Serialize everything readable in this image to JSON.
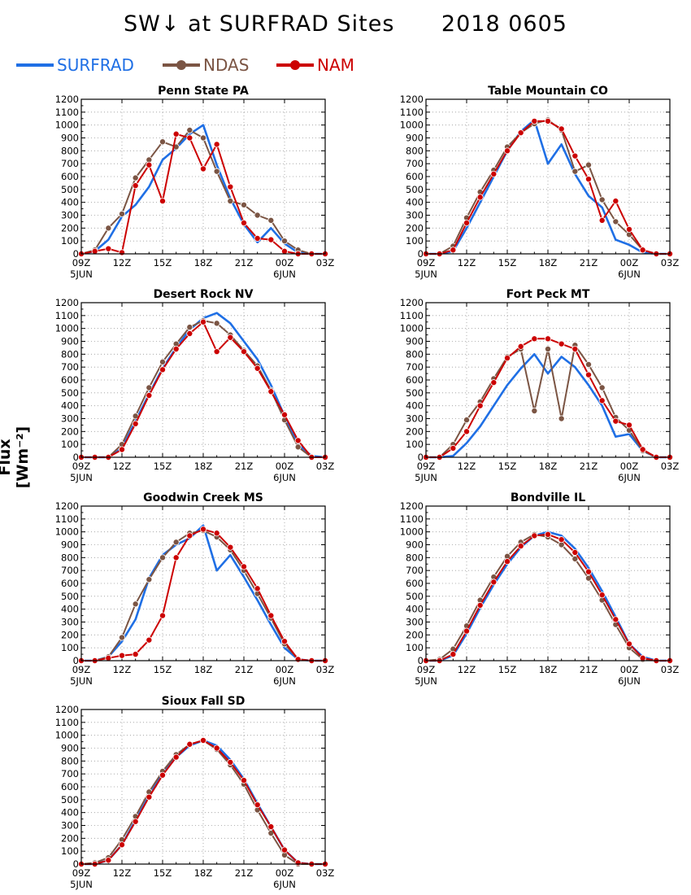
{
  "title": {
    "left": "SW↓ at SURFRAD Sites",
    "right": "2018 0605"
  },
  "legend": [
    {
      "name": "SURFRAD",
      "color": "#1f6fe5",
      "marker": "none"
    },
    {
      "name": "NDAS",
      "color": "#7b5544",
      "marker": "circle"
    },
    {
      "name": "NAM",
      "color": "#cc0000",
      "marker": "circle"
    }
  ],
  "ylabel": "Flux [Wm⁻²]",
  "axes": {
    "x_ticks": [
      "09Z",
      "12Z",
      "15Z",
      "18Z",
      "21Z",
      "00Z",
      "03Z"
    ],
    "x_sublabels": [
      "5JUN",
      "6JUN"
    ],
    "y_ticks": [
      "0",
      "100",
      "200",
      "300",
      "400",
      "500",
      "600",
      "700",
      "800",
      "900",
      "1000",
      "1100",
      "1200"
    ],
    "grid": true
  },
  "chart_data": [
    {
      "type": "line",
      "title": "Penn State PA",
      "x_hours_start": 9,
      "ylim": [
        0,
        1200
      ],
      "series": [
        {
          "name": "NDAS",
          "values": [
            0,
            30,
            200,
            310,
            590,
            730,
            870,
            830,
            960,
            900,
            640,
            410,
            380,
            300,
            260,
            100,
            30,
            0,
            0
          ]
        },
        {
          "name": "NAM",
          "values": [
            0,
            20,
            40,
            10,
            530,
            690,
            410,
            930,
            900,
            660,
            850,
            520,
            240,
            120,
            110,
            20,
            0,
            0,
            0
          ]
        },
        {
          "name": "SURFRAD",
          "values": [
            0,
            20,
            110,
            290,
            380,
            520,
            730,
            820,
            930,
            1000,
            690,
            430,
            230,
            90,
            200,
            80,
            10,
            0,
            0
          ]
        }
      ]
    },
    {
      "type": "line",
      "title": "Table Mountain CO",
      "x_hours_start": 9,
      "ylim": [
        0,
        1200
      ],
      "series": [
        {
          "name": "NDAS",
          "values": [
            0,
            0,
            60,
            280,
            480,
            650,
            830,
            940,
            1010,
            1040,
            960,
            640,
            690,
            420,
            250,
            150,
            30,
            0,
            0
          ]
        },
        {
          "name": "NAM",
          "values": [
            0,
            0,
            30,
            240,
            440,
            620,
            800,
            940,
            1030,
            1030,
            970,
            760,
            580,
            260,
            410,
            190,
            30,
            0,
            0
          ]
        },
        {
          "name": "SURFRAD",
          "values": [
            0,
            0,
            20,
            200,
            400,
            600,
            800,
            950,
            1040,
            700,
            850,
            620,
            450,
            360,
            110,
            70,
            10,
            0,
            0
          ]
        }
      ]
    },
    {
      "type": "line",
      "title": "Desert Rock NV",
      "x_hours_start": 9,
      "ylim": [
        0,
        1200
      ],
      "series": [
        {
          "name": "NDAS",
          "values": [
            0,
            0,
            0,
            100,
            320,
            540,
            740,
            880,
            1010,
            1060,
            1040,
            950,
            830,
            710,
            520,
            290,
            80,
            0,
            0
          ]
        },
        {
          "name": "NAM",
          "values": [
            0,
            0,
            0,
            60,
            260,
            480,
            680,
            840,
            960,
            1050,
            820,
            930,
            820,
            690,
            510,
            330,
            130,
            0,
            0
          ]
        },
        {
          "name": "SURFRAD",
          "values": [
            0,
            0,
            0,
            70,
            280,
            490,
            690,
            850,
            990,
            1080,
            1120,
            1040,
            900,
            760,
            560,
            320,
            100,
            10,
            0
          ]
        }
      ]
    },
    {
      "type": "line",
      "title": "Fort Peck MT",
      "x_hours_start": 9,
      "ylim": [
        0,
        1200
      ],
      "series": [
        {
          "name": "NDAS",
          "values": [
            0,
            0,
            100,
            290,
            430,
            610,
            780,
            840,
            360,
            840,
            300,
            870,
            720,
            540,
            310,
            210,
            50,
            0,
            0
          ]
        },
        {
          "name": "NAM",
          "values": [
            0,
            0,
            70,
            200,
            400,
            580,
            770,
            860,
            920,
            920,
            880,
            840,
            640,
            440,
            280,
            250,
            60,
            0,
            0
          ]
        },
        {
          "name": "SURFRAD",
          "values": [
            0,
            0,
            10,
            110,
            240,
            400,
            560,
            690,
            800,
            650,
            780,
            700,
            560,
            400,
            160,
            180,
            50,
            0,
            0
          ]
        }
      ]
    },
    {
      "type": "line",
      "title": "Goodwin Creek MS",
      "x_hours_start": 9,
      "ylim": [
        0,
        1200
      ],
      "series": [
        {
          "name": "NDAS",
          "values": [
            0,
            0,
            30,
            180,
            440,
            630,
            800,
            920,
            990,
            1010,
            960,
            860,
            700,
            520,
            330,
            130,
            10,
            0,
            0
          ]
        },
        {
          "name": "NAM",
          "values": [
            0,
            0,
            20,
            40,
            50,
            160,
            350,
            800,
            970,
            1020,
            990,
            880,
            730,
            560,
            350,
            150,
            10,
            0,
            0
          ]
        },
        {
          "name": "SURFRAD",
          "values": [
            0,
            0,
            30,
            150,
            320,
            640,
            820,
            900,
            950,
            1050,
            700,
            820,
            650,
            470,
            280,
            100,
            10,
            0,
            0
          ]
        }
      ]
    },
    {
      "type": "line",
      "title": "Bondville IL",
      "x_hours_start": 9,
      "ylim": [
        0,
        1200
      ],
      "series": [
        {
          "name": "NDAS",
          "values": [
            0,
            10,
            90,
            270,
            470,
            650,
            810,
            920,
            980,
            960,
            900,
            790,
            640,
            470,
            280,
            100,
            10,
            0,
            0
          ]
        },
        {
          "name": "NAM",
          "values": [
            0,
            0,
            50,
            230,
            430,
            610,
            770,
            890,
            970,
            980,
            940,
            840,
            690,
            510,
            320,
            130,
            20,
            0,
            0
          ]
        },
        {
          "name": "SURFRAD",
          "values": [
            0,
            0,
            40,
            210,
            410,
            590,
            750,
            880,
            970,
            1000,
            970,
            870,
            720,
            540,
            340,
            130,
            30,
            0,
            0
          ]
        }
      ]
    },
    {
      "type": "line",
      "title": "Sioux Fall SD",
      "x_hours_start": 9,
      "ylim": [
        0,
        1200
      ],
      "series": [
        {
          "name": "NDAS",
          "values": [
            0,
            10,
            50,
            190,
            370,
            560,
            720,
            850,
            930,
            960,
            890,
            770,
            620,
            420,
            240,
            70,
            0,
            0,
            0
          ]
        },
        {
          "name": "NAM",
          "values": [
            0,
            0,
            30,
            150,
            330,
            520,
            690,
            830,
            930,
            960,
            900,
            790,
            650,
            460,
            290,
            110,
            10,
            0,
            0
          ]
        },
        {
          "name": "SURFRAD",
          "values": [
            0,
            0,
            30,
            150,
            340,
            530,
            700,
            830,
            920,
            960,
            920,
            810,
            660,
            470,
            290,
            110,
            10,
            0,
            0
          ]
        }
      ]
    }
  ]
}
